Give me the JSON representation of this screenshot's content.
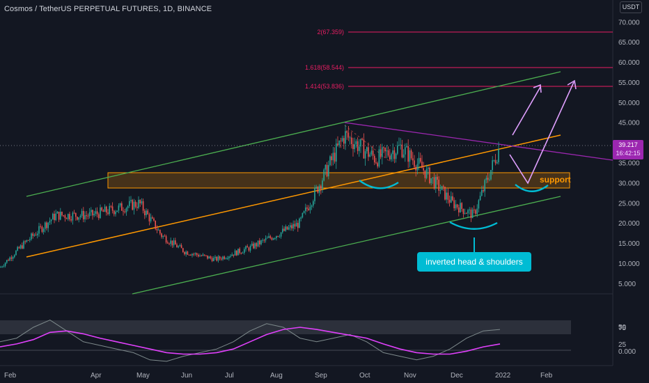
{
  "header": {
    "title": "Cosmos / TetherUS PERPETUAL FUTURES, 1D, BINANCE",
    "currency": "USDT"
  },
  "price": {
    "last": "39.217",
    "countdown": "16:42:15"
  },
  "annotations": {
    "support": "support",
    "pattern": "inverted head & shoulders"
  },
  "fib_levels": [
    {
      "label": "2(67.359)",
      "value": 67.359
    },
    {
      "label": "1.618(58.544)",
      "value": 58.544
    },
    {
      "label": "1.414(53.836)",
      "value": 53.836
    }
  ],
  "colors": {
    "background": "#131722",
    "up": "#26a69a",
    "down": "#ef5350",
    "channel": "#4caf50",
    "midline": "#ff9800",
    "trendline": "#9c27b0",
    "fib": "#e91e63",
    "arrows": "#e0a0ff",
    "rsi": "#7e8a8c",
    "rsi_ma": "#e040fb",
    "support_zone": "#ff9800",
    "annotation": "#00bcd4"
  },
  "chart_data": [
    {
      "type": "candlestick",
      "title": "Cosmos / TetherUS PERPETUAL FUTURES, 1D, BINANCE",
      "x_tick_labels": [
        "Feb",
        "Apr",
        "May",
        "Jun",
        "Jul",
        "Aug",
        "Sep",
        "Oct",
        "Nov",
        "Dec",
        "2022",
        "Feb"
      ],
      "y_tick_labels": [
        "70.000",
        "65.000",
        "60.000",
        "55.000",
        "50.000",
        "45.000",
        "40.000",
        "35.000",
        "30.000",
        "25.000",
        "20.000",
        "15.000",
        "10.000",
        "5.000"
      ],
      "ylim": [
        0,
        75
      ],
      "grid": false,
      "approx_close_path": [
        {
          "x": "Jan",
          "y": 9
        },
        {
          "x": "Feb",
          "y": 15
        },
        {
          "x": "Mar",
          "y": 22
        },
        {
          "x": "Apr",
          "y": 22
        },
        {
          "x": "May",
          "y": 25
        },
        {
          "x": "May",
          "y": 17
        },
        {
          "x": "Jun",
          "y": 13
        },
        {
          "x": "Jul",
          "y": 11
        },
        {
          "x": "Aug",
          "y": 14
        },
        {
          "x": "Aug",
          "y": 20
        },
        {
          "x": "Sep",
          "y": 42
        },
        {
          "x": "Oct",
          "y": 36
        },
        {
          "x": "Nov",
          "y": 39
        },
        {
          "x": "Nov",
          "y": 33
        },
        {
          "x": "Dec",
          "y": 25
        },
        {
          "x": "Dec",
          "y": 22
        },
        {
          "x": "2022",
          "y": 39.217
        }
      ],
      "support_zone": [
        29,
        33
      ],
      "annotations": [
        "support",
        "inverted head & shoulders"
      ]
    },
    {
      "type": "line",
      "title": "",
      "y_tick_labels": [
        "75",
        "50",
        "25"
      ],
      "ylim": [
        20,
        90
      ],
      "band": [
        40,
        60
      ],
      "series": [
        {
          "values": [
            55,
            60,
            75,
            85,
            70,
            55,
            50,
            45,
            40,
            30,
            28,
            35,
            40,
            45,
            55,
            70,
            80,
            75,
            60,
            55,
            60,
            65,
            55,
            40,
            35,
            30,
            35,
            45,
            60,
            70,
            72
          ]
        },
        {
          "values": [
            48,
            52,
            58,
            68,
            70,
            66,
            60,
            55,
            50,
            45,
            40,
            38,
            38,
            40,
            45,
            55,
            65,
            72,
            75,
            72,
            68,
            64,
            60,
            52,
            45,
            40,
            38,
            38,
            42,
            48,
            52
          ]
        }
      ]
    }
  ]
}
